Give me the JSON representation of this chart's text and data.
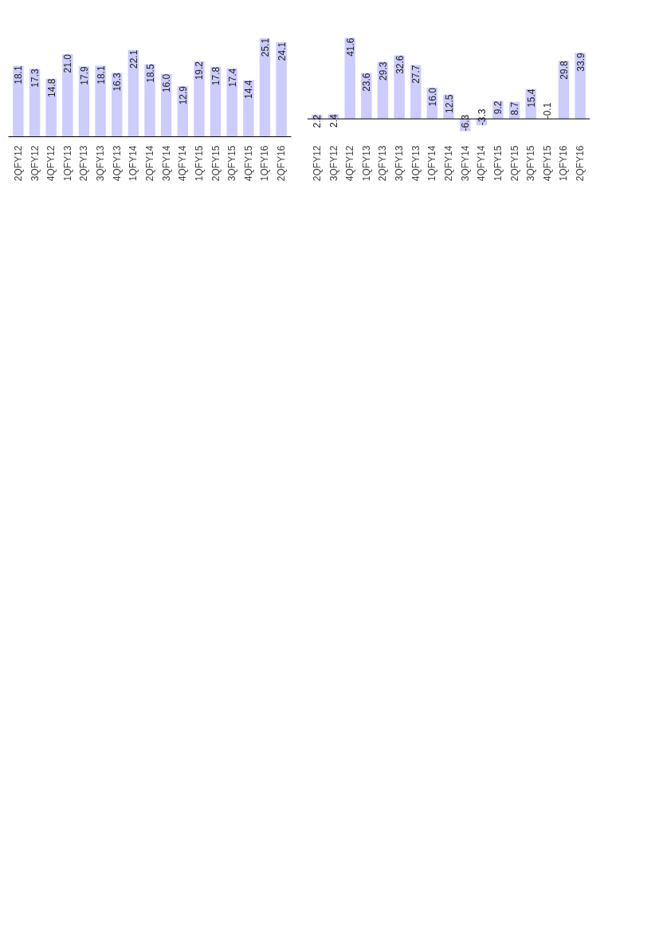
{
  "chart_data": [
    {
      "type": "bar",
      "categories": [
        "2QFY12",
        "3QFY12",
        "4QFY12",
        "1QFY13",
        "2QFY13",
        "3QFY13",
        "4QFY13",
        "1QFY14",
        "2QFY14",
        "3QFY14",
        "4QFY14",
        "1QFY15",
        "2QFY15",
        "3QFY15",
        "4QFY15",
        "1QFY16",
        "2QFY16"
      ],
      "series": [
        {
          "color": "#ccccff",
          "values": [
            18.1,
            17.3,
            14.8,
            21.0,
            17.9,
            18.1,
            16.3,
            22.1,
            18.5,
            16.0,
            12.9,
            19.2,
            17.8,
            17.4,
            14.4,
            25.1,
            24.1
          ],
          "value_labels": [
            "18.1",
            "17.3",
            "14.8",
            "21.0",
            "17.9",
            "18.1",
            "16.3",
            "22.1",
            "18.5",
            "16.0",
            "12.9",
            "19.2",
            "17.8",
            "17.4",
            "14.4",
            "25.1",
            "24.1"
          ]
        }
      ],
      "tick_labels": "x",
      "grid": false
    },
    {
      "type": "bar",
      "categories": [
        "2QFY12",
        "3QFY12",
        "4QFY12",
        "1QFY13",
        "2QFY13",
        "3QFY13",
        "4QFY13",
        "1QFY14",
        "2QFY14",
        "3QFY14",
        "4QFY14",
        "1QFY15",
        "2QFY15",
        "3QFY15",
        "4QFY15",
        "1QFY16",
        "2QFY16"
      ],
      "series": [
        {
          "color": "#ccccff",
          "values": [
            2.2,
            2.4,
            41.6,
            23.6,
            29.3,
            32.6,
            27.7,
            16.0,
            12.5,
            -6.3,
            -3.3,
            9.2,
            8.7,
            15.4,
            -0.1,
            29.8,
            33.9
          ],
          "value_labels": [
            "2.2",
            "2.4",
            "41.6",
            "23.6",
            "29.3",
            "32.6",
            "27.7",
            "16.0",
            "12.5",
            "-6.3",
            "-3.3",
            "9.2",
            "8.7",
            "15.4",
            "-0.1",
            "29.8",
            "33.9"
          ]
        }
      ],
      "tick_labels": "x",
      "grid": false
    }
  ]
}
